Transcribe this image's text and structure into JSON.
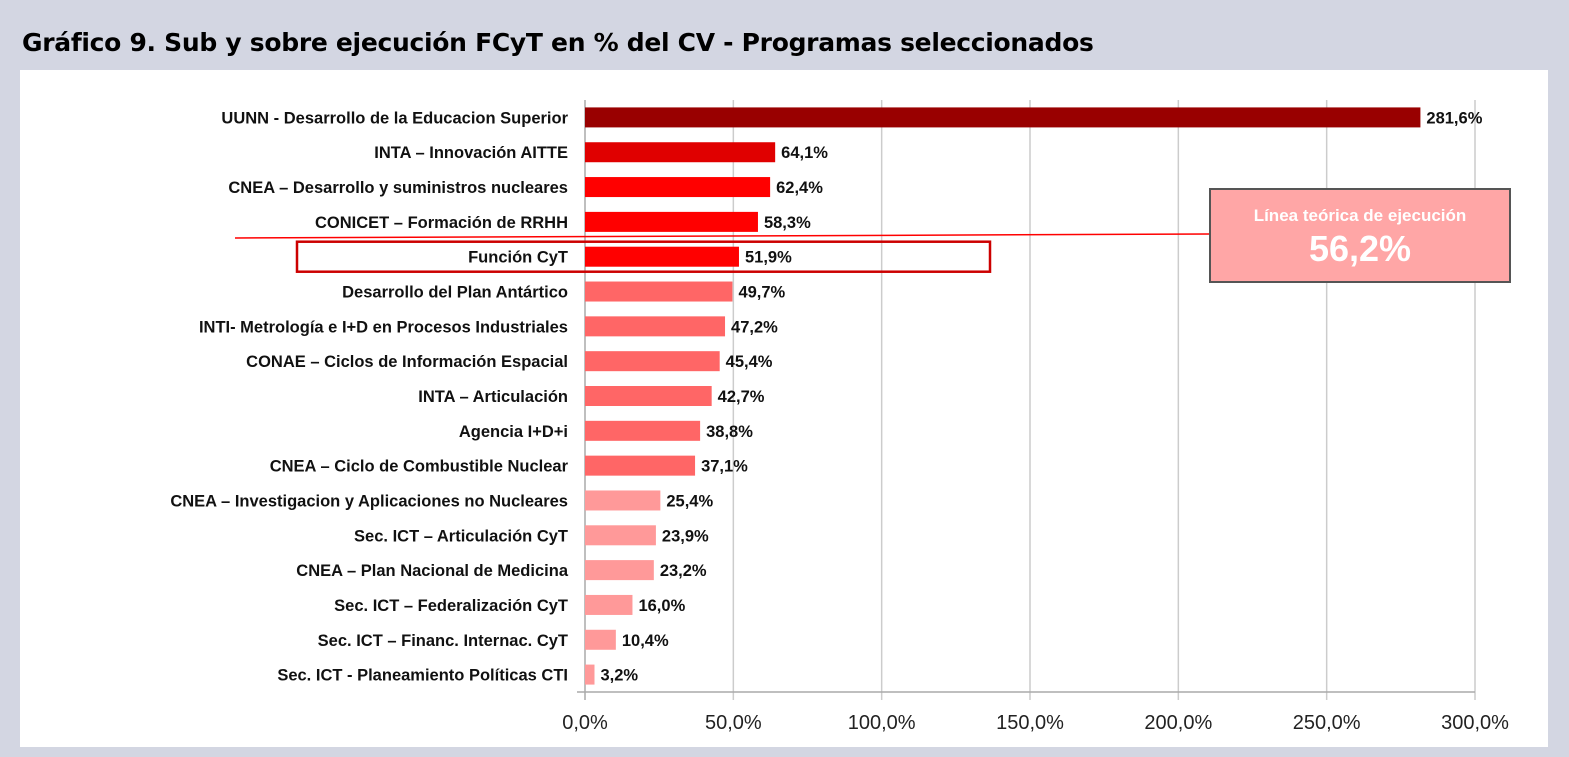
{
  "title": "Gráfico 9. Sub y sobre ejecución FCyT en % del CV - Programas seleccionados",
  "chart_data": {
    "type": "bar",
    "orientation": "horizontal",
    "title": "Gráfico 9. Sub y sobre ejecución FCyT en % del CV - Programas seleccionados",
    "categories": [
      "UUNN - Desarrollo de la Educacion Superior",
      "INTA – Innovación AITTE",
      "CNEA – Desarrollo y suministros nucleares",
      "CONICET – Formación de RRHH",
      "Función CyT",
      "Desarrollo del Plan Antártico",
      "INTI- Metrología e I+D en Procesos Industriales",
      "CONAE – Ciclos de Información Espacial",
      "INTA – Articulación",
      "Agencia I+D+i",
      "CNEA – Ciclo de Combustible Nuclear",
      "CNEA – Investigacion y Aplicaciones no Nucleares",
      "Sec. ICT – Articulación CyT",
      "CNEA – Plan Nacional de Medicina",
      "Sec. ICT – Federalización CyT",
      "Sec. ICT – Financ. Internac. CyT",
      "Sec. ICT -  Planeamiento Políticas CTI"
    ],
    "values": [
      281.6,
      64.1,
      62.4,
      58.3,
      51.9,
      49.7,
      47.2,
      45.4,
      42.7,
      38.8,
      37.1,
      25.4,
      23.9,
      23.2,
      16.0,
      10.4,
      3.2
    ],
    "data_labels": [
      "281,6%",
      "64,1%",
      "62,4%",
      "58,3%",
      "51,9%",
      "49,7%",
      "47,2%",
      "45,4%",
      "42,7%",
      "38,8%",
      "37,1%",
      "25,4%",
      "23,9%",
      "23,2%",
      "16,0%",
      "10,4%",
      "3,2%"
    ],
    "bar_colors": [
      "#990000",
      "#e00000",
      "#ff0000",
      "#ff0000",
      "#ff0000",
      "#ff6666",
      "#ff6666",
      "#ff6666",
      "#ff6666",
      "#ff6666",
      "#ff6666",
      "#ff9999",
      "#ff9999",
      "#ff9999",
      "#ff9999",
      "#ff9999",
      "#ff9999"
    ],
    "highlighted_category": "Función CyT",
    "highlight_color": "#cc0000",
    "xlim": [
      0,
      300
    ],
    "xticks": [
      0,
      50,
      100,
      150,
      200,
      250,
      300
    ],
    "xtick_labels": [
      "0,0%",
      "50,0%",
      "100,0%",
      "150,0%",
      "200,0%",
      "250,0%",
      "300,0%"
    ],
    "grid": "vertical",
    "reference_line": {
      "label": "Línea teórica de ejecución",
      "value_label": "56,2%",
      "value": 56.2,
      "color": "#ff0000",
      "box_color": "#ffa6a6"
    }
  }
}
